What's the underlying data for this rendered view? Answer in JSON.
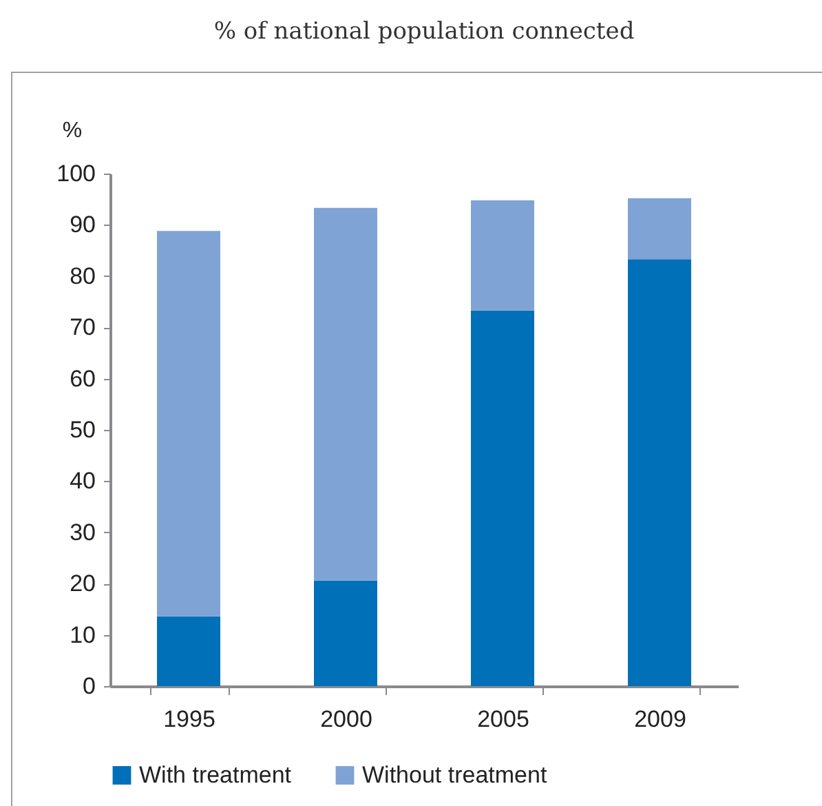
{
  "chart_data": {
    "type": "bar",
    "title": "% of national population connected",
    "ylabel": "%",
    "categories": [
      "1995",
      "2000",
      "2005",
      "2009"
    ],
    "stacked": true,
    "series": [
      {
        "name": "With treatment",
        "color": "#0070b8",
        "values": [
          13.6,
          20.6,
          73.3,
          83.3
        ]
      },
      {
        "name": "Without treatment",
        "color": "#7fa3d5",
        "values": [
          75.2,
          72.7,
          21.5,
          11.9
        ]
      }
    ],
    "ylim": [
      0,
      100
    ],
    "yticks": [
      0,
      10,
      20,
      30,
      40,
      50,
      60,
      70,
      80,
      90,
      100
    ],
    "grid": false,
    "legend": "bottom"
  }
}
